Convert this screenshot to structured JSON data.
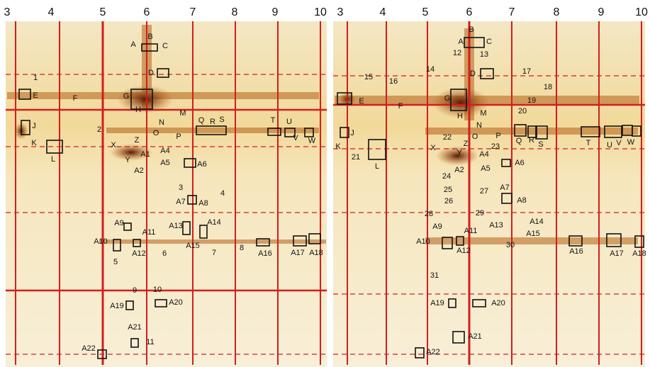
{
  "left_panel": {
    "ph_scale": [
      "3",
      "4",
      "5",
      "6",
      "7",
      "8",
      "9",
      "10"
    ],
    "spots": [
      "B",
      "A",
      "C",
      "D",
      "1",
      "E",
      "F",
      "G",
      "H",
      "M",
      "N",
      "Q",
      "R",
      "S",
      "T",
      "U",
      "O",
      "P",
      "J",
      "K",
      "L",
      "2",
      "V",
      "W",
      "X",
      "Z",
      "Y",
      "A4",
      "A1",
      "A2",
      "A5",
      "A6",
      "3",
      "4",
      "A7",
      "A8",
      "A9",
      "A11",
      "A13",
      "A14",
      "A10",
      "A12",
      "A15",
      "5",
      "6",
      "7",
      "8",
      "A16",
      "A17",
      "A18",
      "9",
      "10",
      "A19",
      "A20",
      "A21",
      "11",
      "A22"
    ]
  },
  "right_panel": {
    "ph_scale": [
      "3",
      "4",
      "5",
      "6",
      "7",
      "8",
      "9",
      "10"
    ],
    "spots": [
      "B",
      "A",
      "C",
      "12",
      "13",
      "14",
      "D",
      "17",
      "15",
      "16",
      "18",
      "19",
      "E",
      "F",
      "G",
      "H",
      "20",
      "M",
      "N",
      "21",
      "J",
      "K",
      "L",
      "Q",
      "R",
      "S",
      "T",
      "U",
      "V",
      "W",
      "O",
      "P",
      "22",
      "Z",
      "X",
      "Y",
      "A4",
      "23",
      "A2",
      "A5",
      "24",
      "A6",
      "25",
      "26",
      "27",
      "A7",
      "A8",
      "28",
      "29",
      "A9",
      "A11",
      "A13",
      "A14",
      "A15",
      "30",
      "A10",
      "A12",
      "A16",
      "A17",
      "A18",
      "31",
      "A19",
      "A20",
      "A21",
      "A22"
    ]
  }
}
